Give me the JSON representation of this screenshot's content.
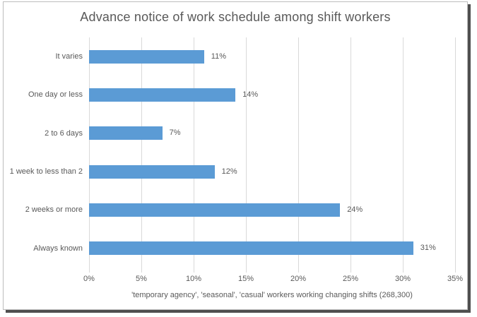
{
  "chart_data": {
    "type": "bar",
    "orientation": "horizontal",
    "title": "Advance notice of work schedule among shift workers",
    "categories": [
      "It varies",
      "One day or less",
      "2 to 6 days",
      "1 week to less than 2",
      "2 weeks or more",
      "Always known"
    ],
    "values": [
      11,
      14,
      7,
      12,
      24,
      31
    ],
    "data_labels": [
      "11%",
      "14%",
      "7%",
      "12%",
      "24%",
      "31%"
    ],
    "xlabel": "'temporary agency', 'seasonal', 'casual' workers working changing shifts (268,300)",
    "ylabel": "",
    "x_ticks": [
      "0%",
      "5%",
      "10%",
      "15%",
      "20%",
      "25%",
      "30%",
      "35%"
    ],
    "xlim": [
      0,
      35
    ],
    "grid": true,
    "legend_position": "none",
    "colors": {
      "bar": "#5b9bd5",
      "gridline": "#d9d9d9",
      "text": "#595959",
      "frame_border": "#bdbdbd",
      "frame_shadow": "#4f4f4f",
      "background": "#ffffff"
    }
  }
}
